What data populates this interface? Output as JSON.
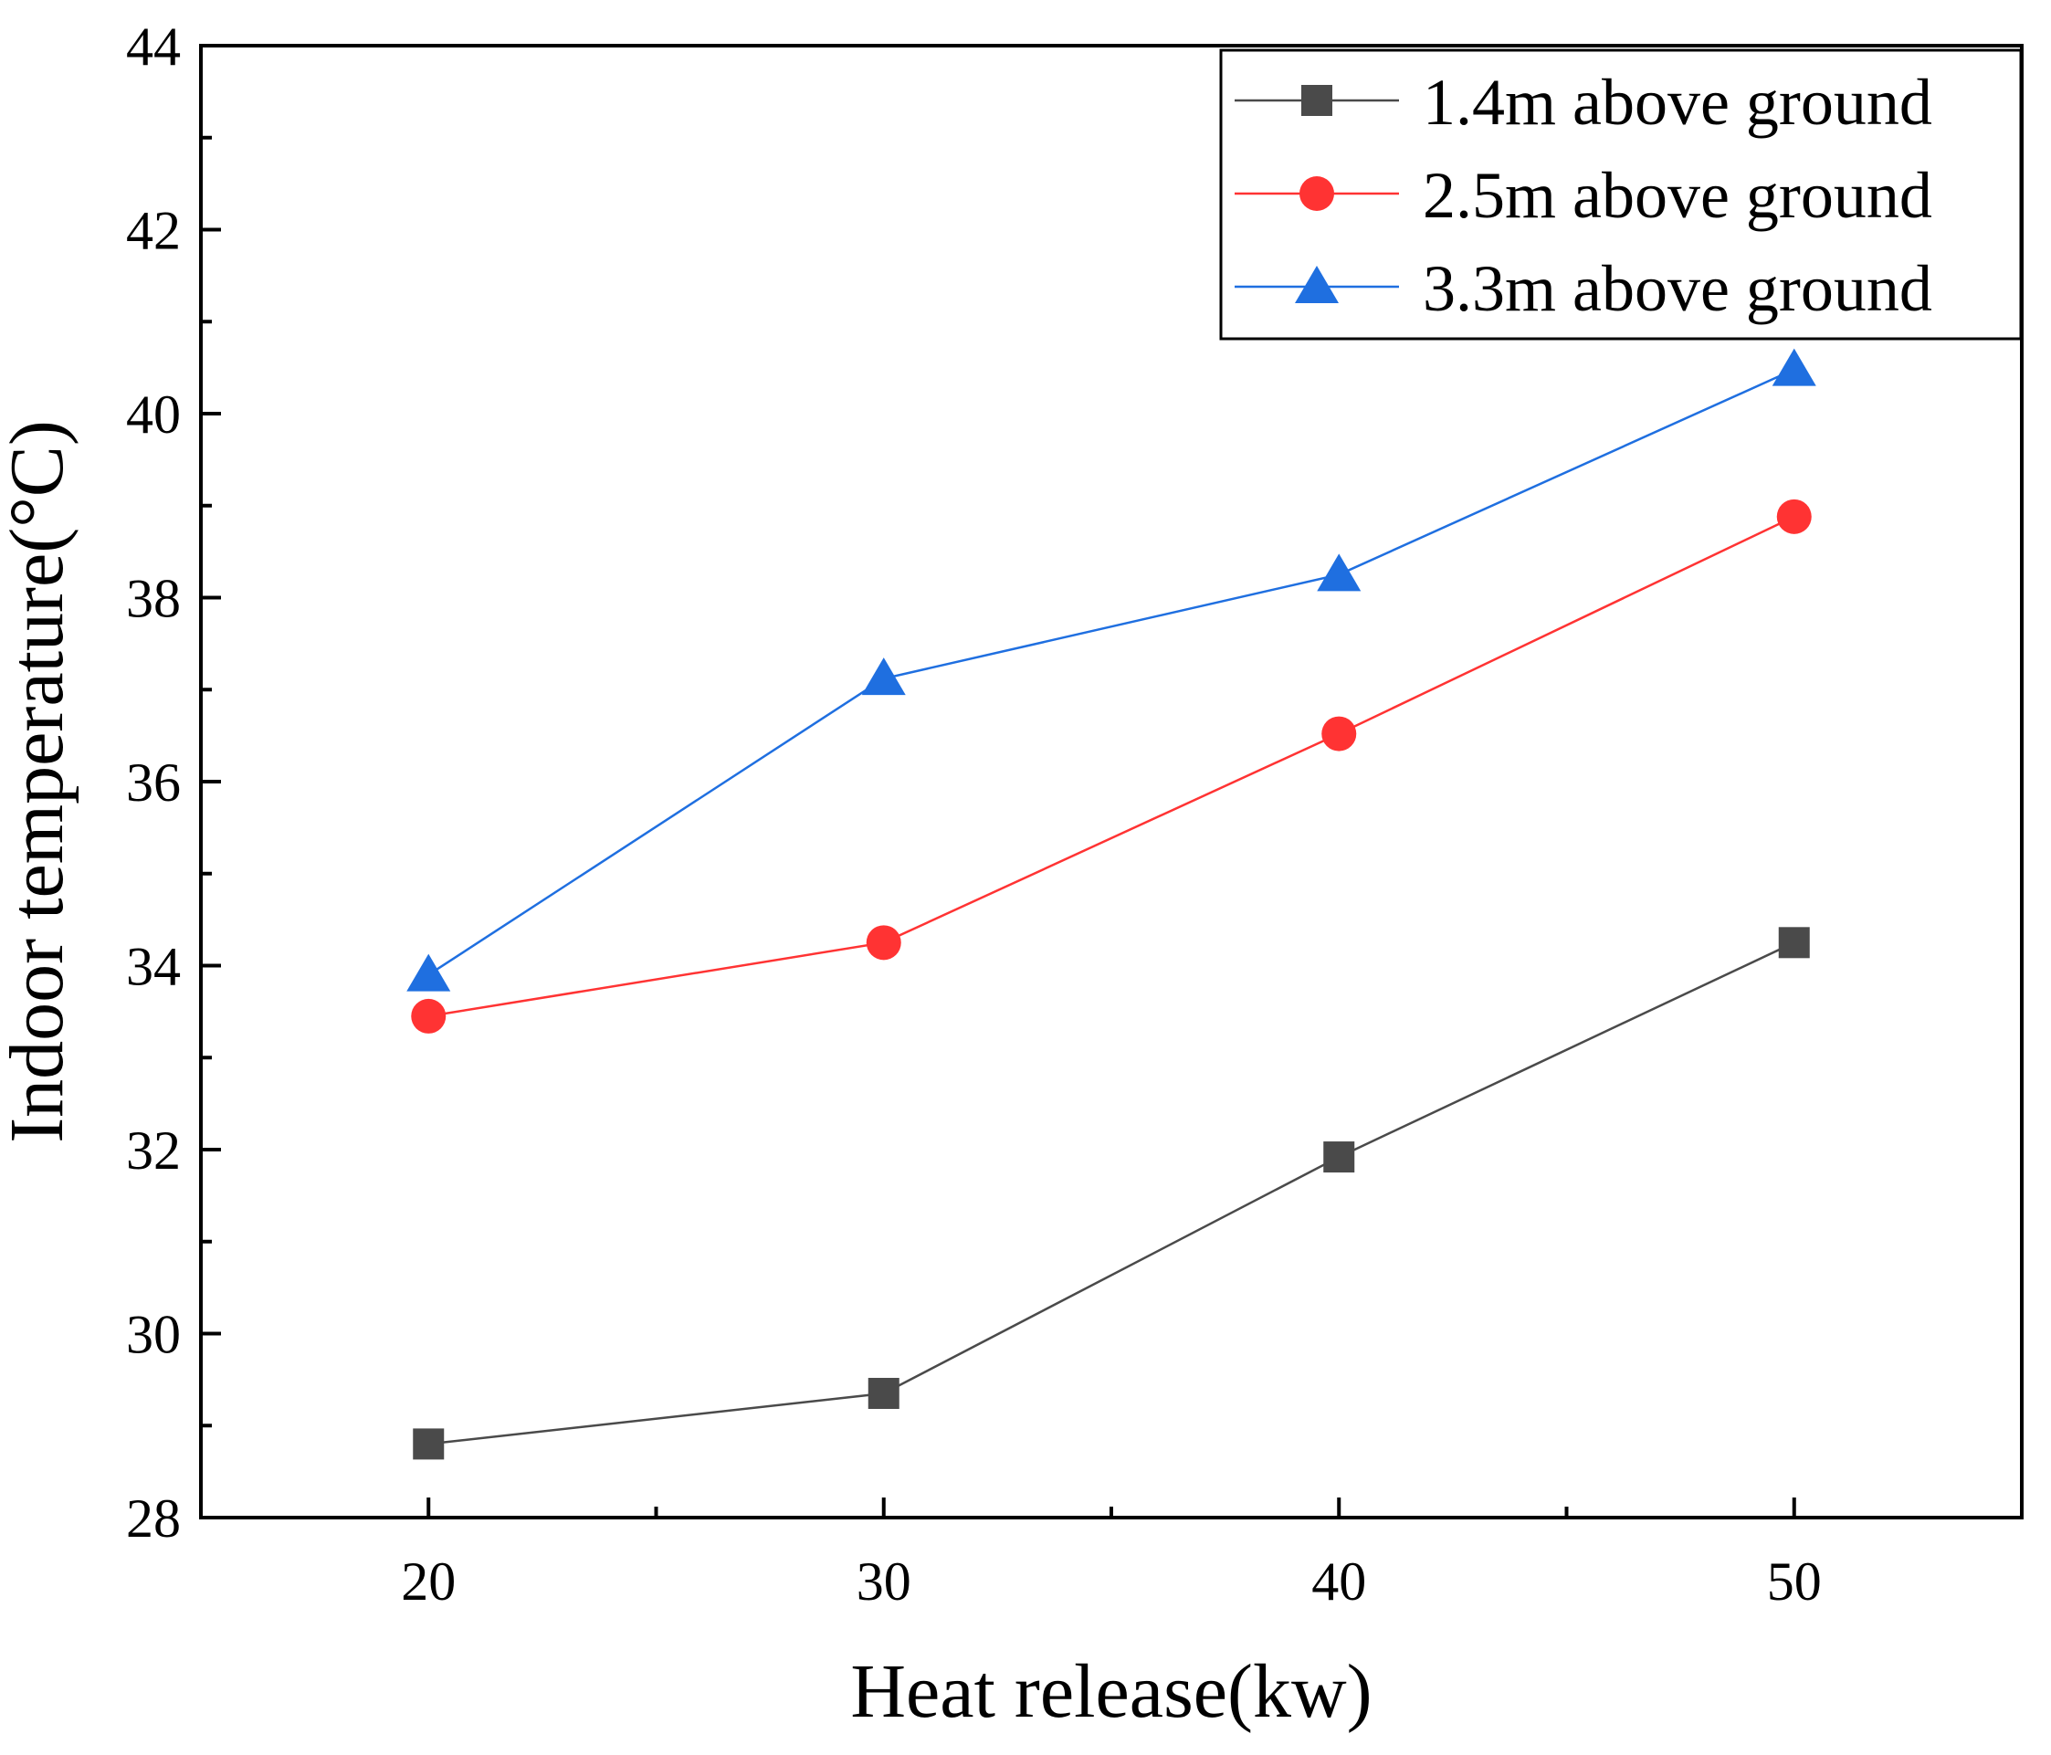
{
  "chart_data": {
    "type": "line",
    "title": "",
    "xlabel": "Heat release(kw)",
    "ylabel": "Indoor temperature(°C)",
    "x": [
      20,
      30,
      40,
      50
    ],
    "xlim": [
      15,
      55
    ],
    "ylim": [
      28,
      44
    ],
    "x_ticks": [
      20,
      30,
      40,
      50
    ],
    "x_tick_labels": [
      "20",
      "30",
      "40",
      "50"
    ],
    "y_ticks": [
      28,
      30,
      32,
      34,
      36,
      38,
      40,
      42,
      44
    ],
    "y_tick_labels": [
      "28",
      "30",
      "32",
      "34",
      "36",
      "38",
      "40",
      "42",
      "44"
    ],
    "grid": false,
    "legend_position": "top-right",
    "series": [
      {
        "name": "1.4m above ground",
        "values": [
          28.8,
          29.35,
          31.92,
          34.25
        ],
        "color": "#4a4a4a",
        "marker": "square"
      },
      {
        "name": "2.5m above ground",
        "values": [
          33.45,
          34.25,
          36.52,
          38.88
        ],
        "color": "#ff3333",
        "marker": "circle"
      },
      {
        "name": "3.3m above ground",
        "values": [
          33.9,
          37.12,
          38.25,
          40.48
        ],
        "color": "#1f6fe0",
        "marker": "triangle"
      }
    ]
  }
}
